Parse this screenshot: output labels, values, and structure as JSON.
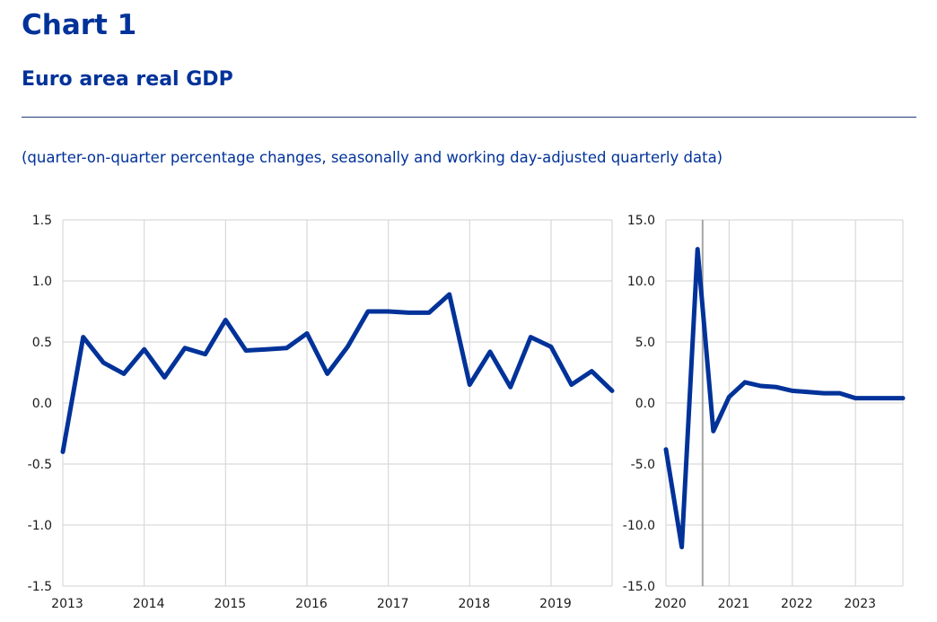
{
  "header": {
    "title": "Chart 1",
    "subtitle": "Euro area real GDP",
    "note": "(quarter-on-quarter percentage changes, seasonally and working day-adjusted quarterly data)"
  },
  "colors": {
    "series": "#003299",
    "grid": "#d9d9d9",
    "marker": "#a6a6a6",
    "text": "#003299"
  },
  "chart_data": [
    {
      "type": "line",
      "title": "",
      "xlabel": "",
      "ylabel": "",
      "ylim": [
        -1.5,
        1.5
      ],
      "yticks": [
        "1.5",
        "1.0",
        "0.5",
        "0.0",
        "-0.5",
        "-1.0",
        "-1.5"
      ],
      "ytick_values": [
        1.5,
        1.0,
        0.5,
        0.0,
        -0.5,
        -1.0,
        -1.5
      ],
      "xticks": [
        "2013",
        "2014",
        "2015",
        "2016",
        "2017",
        "2018",
        "2019"
      ],
      "x": [
        2013.0,
        2013.25,
        2013.5,
        2013.75,
        2014.0,
        2014.25,
        2014.5,
        2014.75,
        2015.0,
        2015.25,
        2015.5,
        2015.75,
        2016.0,
        2016.25,
        2016.5,
        2016.75,
        2017.0,
        2017.25,
        2017.5,
        2017.75,
        2018.0,
        2018.25,
        2018.5,
        2018.75,
        2019.0,
        2019.25,
        2019.5,
        2019.75
      ],
      "series": [
        {
          "name": "Euro area real GDP",
          "values": [
            -0.4,
            0.54,
            0.33,
            0.24,
            0.44,
            0.21,
            0.45,
            0.4,
            0.68,
            0.43,
            0.44,
            0.45,
            0.57,
            0.24,
            0.46,
            0.75,
            0.75,
            0.74,
            0.74,
            0.89,
            0.15,
            0.42,
            0.13,
            0.54,
            0.46,
            0.15,
            0.26,
            0.1
          ]
        }
      ],
      "grid": true
    },
    {
      "type": "line",
      "title": "",
      "xlabel": "",
      "ylabel": "",
      "ylim": [
        -15.0,
        15.0
      ],
      "yticks": [
        "15.0",
        "10.0",
        "5.0",
        "0.0",
        "-5.0",
        "-10.0",
        "-15.0"
      ],
      "ytick_values": [
        15,
        10,
        5,
        0,
        -5,
        -10,
        -15
      ],
      "xticks": [
        "2020",
        "2021",
        "2022",
        "2023"
      ],
      "x": [
        2020.0,
        2020.25,
        2020.5,
        2020.75,
        2021.0,
        2021.25,
        2021.5,
        2021.75,
        2022.0,
        2022.25,
        2022.5,
        2022.75,
        2023.0,
        2023.25,
        2023.5,
        2023.75
      ],
      "series": [
        {
          "name": "Euro area real GDP",
          "values": [
            -3.8,
            -11.8,
            12.6,
            -2.3,
            0.5,
            1.7,
            1.4,
            1.3,
            1.0,
            0.9,
            0.8,
            0.8,
            0.4,
            0.4,
            0.4,
            0.4
          ]
        }
      ],
      "marker_x": 2020.58,
      "grid": true
    }
  ]
}
